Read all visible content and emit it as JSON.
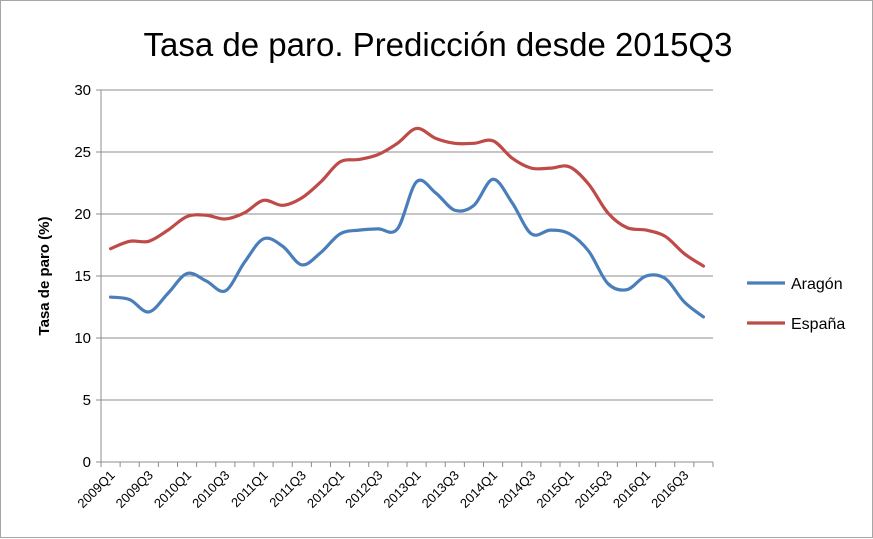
{
  "chart_data": {
    "type": "line",
    "title": "Tasa de paro. Predicción desde 2015Q3",
    "xlabel": "",
    "ylabel": "Tasa de paro (%)",
    "ylim": [
      0,
      30
    ],
    "yticks": [
      "0",
      "5",
      "10",
      "15",
      "20",
      "25",
      "30"
    ],
    "grid": true,
    "legend_position": "right",
    "x": [
      "2009Q1",
      "2009Q2",
      "2009Q3",
      "2009Q4",
      "2010Q1",
      "2010Q2",
      "2010Q3",
      "2010Q4",
      "2011Q1",
      "2011Q2",
      "2011Q3",
      "2011Q4",
      "2012Q1",
      "2012Q2",
      "2012Q3",
      "2012Q4",
      "2013Q1",
      "2013Q2",
      "2013Q3",
      "2013Q4",
      "2014Q1",
      "2014Q2",
      "2014Q3",
      "2014Q4",
      "2015Q1",
      "2015Q2",
      "2015Q3",
      "2015Q4",
      "2016Q1",
      "2016Q2",
      "2016Q3",
      "2016Q4"
    ],
    "xtick_labels": [
      "2009Q1",
      "2009Q3",
      "2010Q1",
      "2010Q3",
      "2011Q1",
      "2011Q3",
      "2012Q1",
      "2012Q3",
      "2013Q1",
      "2013Q3",
      "2014Q1",
      "2014Q3",
      "2015Q1",
      "2015Q3",
      "2016Q1",
      "2016Q3"
    ],
    "series": [
      {
        "name": "Aragón",
        "color": "#4a7ebb",
        "values": [
          13.3,
          13.1,
          12.1,
          13.6,
          15.2,
          14.6,
          13.8,
          16.1,
          18.0,
          17.4,
          15.9,
          16.9,
          18.4,
          18.7,
          18.8,
          18.8,
          22.6,
          21.7,
          20.3,
          20.7,
          22.8,
          20.9,
          18.4,
          18.7,
          18.4,
          17.0,
          14.4,
          13.9,
          15.0,
          14.8,
          12.9,
          11.7
        ]
      },
      {
        "name": "España",
        "color": "#be4b48",
        "values": [
          17.2,
          17.8,
          17.8,
          18.7,
          19.8,
          19.9,
          19.6,
          20.1,
          21.1,
          20.7,
          21.3,
          22.6,
          24.2,
          24.4,
          24.8,
          25.7,
          26.9,
          26.1,
          25.7,
          25.7,
          25.9,
          24.5,
          23.7,
          23.7,
          23.8,
          22.4,
          20.1,
          18.9,
          18.7,
          18.2,
          16.8,
          15.8
        ]
      }
    ]
  }
}
